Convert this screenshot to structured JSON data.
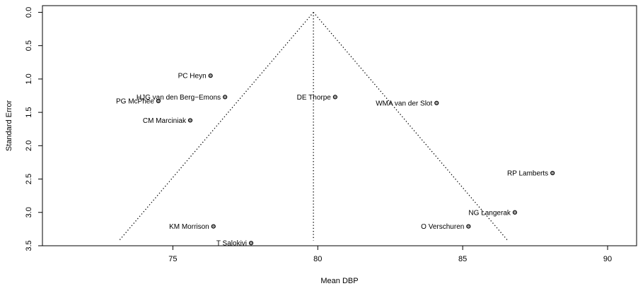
{
  "chart_data": {
    "type": "scatter",
    "title": "",
    "xlabel": "Mean DBP",
    "ylabel": "Standard Error",
    "xlim": [
      70.5,
      91
    ],
    "ylim": [
      3.5,
      -0.1
    ],
    "y_reversed": true,
    "x_ticks": [
      75,
      80,
      85,
      90
    ],
    "y_ticks": [
      0.0,
      0.5,
      1.0,
      1.5,
      2.0,
      2.5,
      3.0,
      3.5
    ],
    "x_tick_labels": [
      "75",
      "80",
      "85",
      "90"
    ],
    "y_tick_labels": [
      "0.0",
      "0.5",
      "1.0",
      "1.5",
      "2.0",
      "2.5",
      "3.0",
      "3.5"
    ],
    "grid": false,
    "legend": "none",
    "points": [
      {
        "label": "PC Heyn",
        "x": 76.3,
        "y": 0.95
      },
      {
        "label": "HJG van den Berg−Emons",
        "x": 76.8,
        "y": 1.27
      },
      {
        "label": "PG McPhee",
        "x": 74.5,
        "y": 1.33
      },
      {
        "label": "CM Marciniak",
        "x": 75.6,
        "y": 1.62
      },
      {
        "label": "DE Thorpe",
        "x": 80.6,
        "y": 1.27
      },
      {
        "label": "WMA van der Slot",
        "x": 84.1,
        "y": 1.36
      },
      {
        "label": "RP Lamberts",
        "x": 88.1,
        "y": 2.41
      },
      {
        "label": "NG Langerak",
        "x": 86.8,
        "y": 3.0
      },
      {
        "label": "O Verschuren",
        "x": 85.2,
        "y": 3.21
      },
      {
        "label": "KM Morrison",
        "x": 76.4,
        "y": 3.21
      },
      {
        "label": "T Salokivi",
        "x": 77.7,
        "y": 3.46
      }
    ],
    "funnel": {
      "center_x": 79.85,
      "apex_y": 0.0,
      "base_y": 3.42,
      "left_x": 73.15,
      "right_x": 86.55
    }
  }
}
